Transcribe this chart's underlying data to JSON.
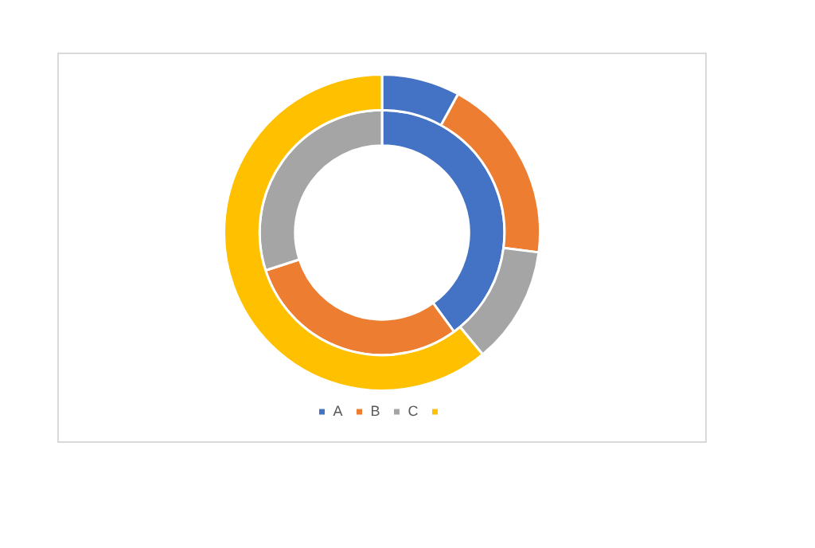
{
  "chart_data": {
    "type": "donut",
    "categories": [
      "A",
      "B",
      "C",
      null
    ],
    "colors": [
      "#4472c4",
      "#ed7d31",
      "#a5a5a5",
      "#ffc000"
    ],
    "series": [
      {
        "values": [
          8,
          19,
          12,
          61
        ]
      },
      {
        "values": [
          40,
          30,
          30,
          0
        ]
      }
    ],
    "legend": "bottom"
  }
}
